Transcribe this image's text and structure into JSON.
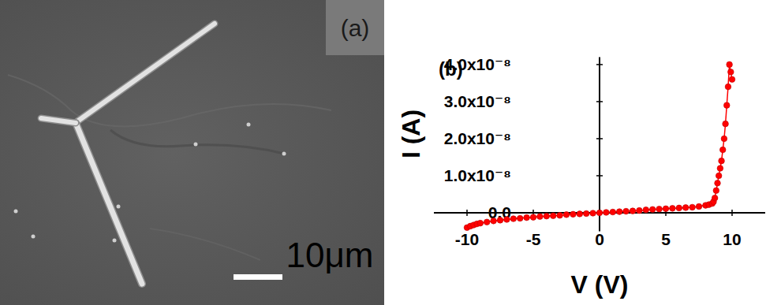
{
  "image_panel": {
    "label": "(a)",
    "scale_bar_label": "10μm"
  },
  "chart_data": {
    "type": "line",
    "panel_label": "(b)",
    "x_label": "V (V)",
    "y_label": "I (A)",
    "color": "#ff0000",
    "marker": "circle",
    "line_style": "solid",
    "x": [
      -10,
      -9.75,
      -9.5,
      -9.25,
      -9,
      -8.5,
      -8,
      -7.5,
      -7,
      -6.5,
      -6,
      -5.5,
      -5,
      -4.5,
      -4,
      -3.5,
      -3,
      -2.5,
      -2,
      -1.5,
      -1,
      -0.5,
      0,
      0.5,
      1,
      1.5,
      2,
      2.5,
      3,
      3.5,
      4,
      4.5,
      5,
      5.5,
      6,
      6.5,
      7,
      7.5,
      8,
      8.25,
      8.5,
      8.6,
      8.7,
      8.8,
      8.9,
      9.0,
      9.1,
      9.2,
      9.3,
      9.4,
      9.5,
      9.6,
      9.7,
      9.8,
      9.9,
      10.0
    ],
    "values": [
      -4e-09,
      -3.6e-09,
      -3.3e-09,
      -3e-09,
      -2.8e-09,
      -2.5e-09,
      -2.2e-09,
      -2e-09,
      -1.8e-09,
      -1.6e-09,
      -1.5e-09,
      -1.3e-09,
      -1.2e-09,
      -1e-09,
      -9e-10,
      -8e-10,
      -7e-10,
      -5e-10,
      -4e-10,
      -3e-10,
      -2e-10,
      -1e-10,
      0,
      1e-10,
      2e-10,
      3e-10,
      4e-10,
      5e-10,
      6e-10,
      8e-10,
      9e-10,
      1e-09,
      1.1e-09,
      1.2e-09,
      1.3e-09,
      1.4e-09,
      1.5e-09,
      1.7e-09,
      2e-09,
      2.2e-09,
      2.5e-09,
      3e-09,
      4e-09,
      6e-09,
      8e-09,
      1e-08,
      1.2e-08,
      1.4e-08,
      1.7e-08,
      2e-08,
      2.4e-08,
      2.9e-08,
      3.4e-08,
      4e-08,
      3.8e-08,
      3.6e-08
    ],
    "xlim": [
      -12.5,
      12.5
    ],
    "xticks": [
      -10,
      -5,
      0,
      5,
      10
    ],
    "ylim": [
      -5e-09,
      4.2e-08
    ],
    "yticks": [
      {
        "value": 0,
        "label": "0.0"
      },
      {
        "value": 1e-08,
        "label": "1.0x10⁻⁸"
      },
      {
        "value": 2e-08,
        "label": "2.0x10⁻⁸"
      },
      {
        "value": 3e-08,
        "label": "3.0x10⁻⁸"
      },
      {
        "value": 4e-08,
        "label": "4.0x10⁻⁸"
      }
    ],
    "grid": false
  }
}
